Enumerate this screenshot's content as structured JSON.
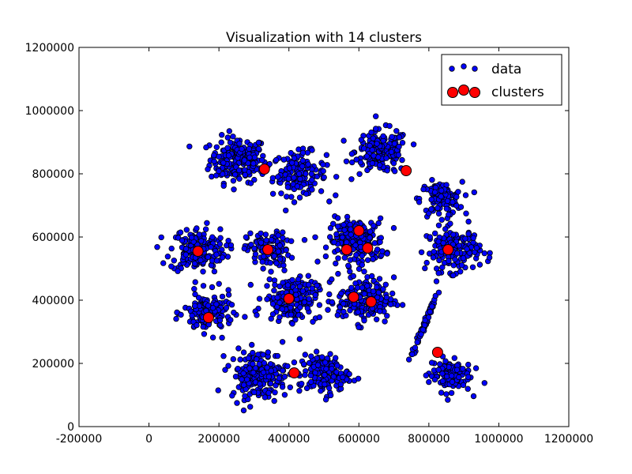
{
  "chart_data": {
    "type": "scatter",
    "title": "Visualization with 14 clusters",
    "xlabel": "",
    "ylabel": "",
    "xlim": [
      -200000,
      1200000
    ],
    "ylim": [
      0,
      1200000
    ],
    "x_ticks": [
      "-200000",
      "0",
      "200000",
      "400000",
      "600000",
      "800000",
      "1000000",
      "1200000"
    ],
    "y_ticks": [
      "0",
      "200000",
      "400000",
      "600000",
      "800000",
      "1000000",
      "1200000"
    ],
    "grid": false,
    "legend_position": "top-right",
    "colors": {
      "data": "#0000ff",
      "clusters": "#ff0000",
      "edge": "#000000"
    },
    "series": [
      {
        "name": "data",
        "cluster_groups": [
          {
            "cx": 255000,
            "cy": 845000,
            "spread": 40000,
            "count": 190
          },
          {
            "cx": 430000,
            "cy": 800000,
            "spread": 38000,
            "count": 140
          },
          {
            "cx": 665000,
            "cy": 870000,
            "spread": 38000,
            "count": 170
          },
          {
            "cx": 835000,
            "cy": 720000,
            "spread": 30000,
            "count": 110
          },
          {
            "cx": 140000,
            "cy": 560000,
            "spread": 40000,
            "count": 170
          },
          {
            "cx": 340000,
            "cy": 560000,
            "spread": 30000,
            "count": 110
          },
          {
            "cx": 595000,
            "cy": 585000,
            "spread": 40000,
            "count": 190
          },
          {
            "cx": 870000,
            "cy": 560000,
            "spread": 38000,
            "count": 150
          },
          {
            "cx": 170000,
            "cy": 360000,
            "spread": 35000,
            "count": 140
          },
          {
            "cx": 405000,
            "cy": 405000,
            "spread": 38000,
            "count": 170
          },
          {
            "cx": 620000,
            "cy": 400000,
            "spread": 40000,
            "count": 170
          },
          {
            "cx": 790000,
            "cy": 330000,
            "spread": 12000,
            "count": 70
          },
          {
            "cx": 315000,
            "cy": 165000,
            "spread": 42000,
            "count": 200
          },
          {
            "cx": 500000,
            "cy": 165000,
            "spread": 35000,
            "count": 140
          },
          {
            "cx": 860000,
            "cy": 165000,
            "spread": 30000,
            "count": 120
          }
        ]
      },
      {
        "name": "clusters",
        "points": [
          {
            "x": 330000,
            "y": 815000
          },
          {
            "x": 735000,
            "y": 810000
          },
          {
            "x": 140000,
            "y": 555000
          },
          {
            "x": 340000,
            "y": 560000
          },
          {
            "x": 600000,
            "y": 620000
          },
          {
            "x": 565000,
            "y": 560000
          },
          {
            "x": 625000,
            "y": 565000
          },
          {
            "x": 855000,
            "y": 560000
          },
          {
            "x": 170000,
            "y": 345000
          },
          {
            "x": 400000,
            "y": 405000
          },
          {
            "x": 585000,
            "y": 410000
          },
          {
            "x": 635000,
            "y": 395000
          },
          {
            "x": 415000,
            "y": 170000
          },
          {
            "x": 825000,
            "y": 235000
          }
        ]
      }
    ],
    "legend": [
      {
        "label": "data"
      },
      {
        "label": "clusters"
      }
    ]
  }
}
